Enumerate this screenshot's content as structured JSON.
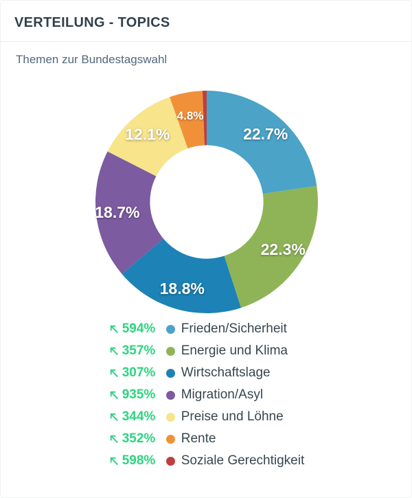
{
  "card": {
    "title": "VERTEILUNG - TOPICS",
    "subtitle": "Themen zur Bundestagswahl"
  },
  "theme": {
    "title_color": "#31414e",
    "subtitle_color": "#52677a",
    "trend_green": "#2bd67e",
    "legend_text_color": "#37464f",
    "divider_color": "#e9ebed",
    "slice_label_color": "#ffffff"
  },
  "chart_data": {
    "type": "pie",
    "subtype": "donut",
    "title": "Themen zur Bundestagswahl",
    "start_angle_deg": 0,
    "direction": "clockwise",
    "inner_radius_ratio": 0.51,
    "outer_radius_px": 162,
    "legend_position": "bottom",
    "slice_labels_shown": true,
    "segments": [
      {
        "label": "Frieden/Sicherheit",
        "value_pct": 22.7,
        "slice_label": "22.7%",
        "color": "#4ba3c7",
        "trend": "594%",
        "trend_direction": "up"
      },
      {
        "label": "Energie und Klima",
        "value_pct": 22.3,
        "slice_label": "22.3%",
        "color": "#8fb457",
        "trend": "357%",
        "trend_direction": "up"
      },
      {
        "label": "Wirtschaftslage",
        "value_pct": 18.8,
        "slice_label": "18.8%",
        "color": "#1d82b5",
        "trend": "307%",
        "trend_direction": "up"
      },
      {
        "label": "Migration/Asyl",
        "value_pct": 18.7,
        "slice_label": "18.7%",
        "color": "#7c5ba1",
        "trend": "935%",
        "trend_direction": "up"
      },
      {
        "label": "Preise und Löhne",
        "value_pct": 12.1,
        "slice_label": "12.1%",
        "color": "#f7e48b",
        "trend": "344%",
        "trend_direction": "up"
      },
      {
        "label": "Rente",
        "value_pct": 4.8,
        "slice_label": "4.8%",
        "color": "#f0913a",
        "trend": "352%",
        "trend_direction": "up"
      },
      {
        "label": "Soziale Gerechtigkeit",
        "value_pct": 0.6,
        "slice_label": "",
        "color": "#bb403d",
        "trend": "598%",
        "trend_direction": "up"
      }
    ]
  }
}
